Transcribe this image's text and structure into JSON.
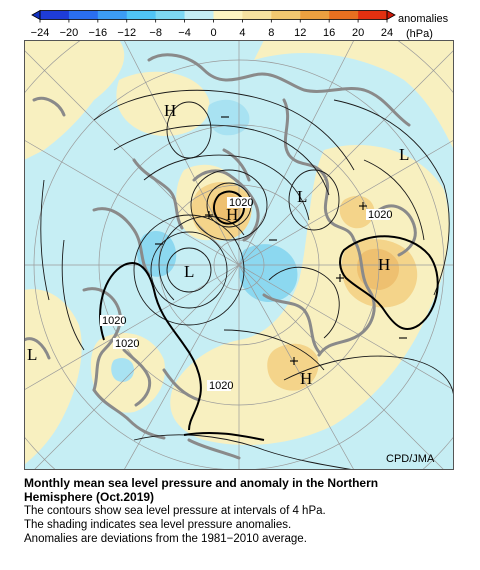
{
  "colorbar": {
    "ticks": [
      "−24",
      "−20",
      "−16",
      "−12",
      "−8",
      "−4",
      "0",
      "4",
      "8",
      "12",
      "16",
      "20",
      "24"
    ],
    "colors": [
      "#1e3cd8",
      "#2a6ef0",
      "#3c9cf4",
      "#50c4f6",
      "#7ed8f2",
      "#c4eef4",
      "#fdf4c0",
      "#f6e2a0",
      "#f2c870",
      "#eca040",
      "#e87020",
      "#e23010"
    ],
    "label_line1": "anomalies",
    "label_line2": "(hPa)"
  },
  "map": {
    "pressure_labels": [
      "1020",
      "1020",
      "1020",
      "1020",
      "1020"
    ],
    "centers": [
      "H",
      "H",
      "H",
      "L",
      "L",
      "L",
      "L"
    ],
    "credit": "CPD/JMA"
  },
  "caption": {
    "title_line1": "Monthly mean sea level pressure and anomaly in the Northern",
    "title_line2": "Hemisphere (Oct.2019)",
    "line1": "The contours show sea level pressure at intervals of 4 hPa.",
    "line2": "The shading indicates sea level pressure anomalies.",
    "line3": "Anomalies are deviations from the 1981−2010 average."
  }
}
